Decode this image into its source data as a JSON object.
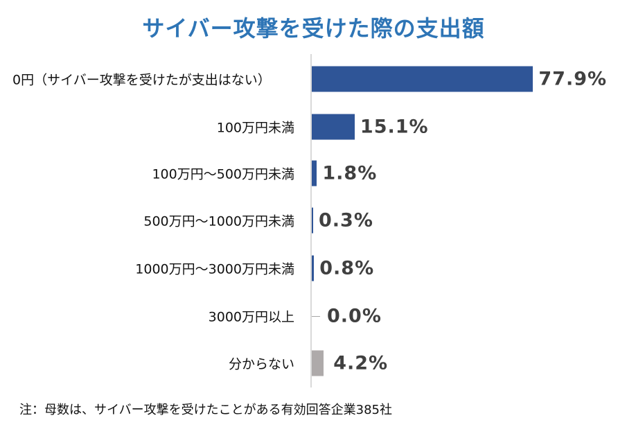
{
  "header": {
    "title": "サイバー攻撃を受けた際の支出額"
  },
  "footer": {
    "note": "注：母数は、サイバー攻撃を受けたことがある有効回答企業385社"
  },
  "colors": {
    "primary_bar": "#2f5597",
    "unknown_bar": "#aeaaaa",
    "title": "#2e75b6",
    "value_text": "#404040",
    "axis": "#d9d9d9"
  },
  "rows": [
    {
      "label": "0円（サイバー攻撃を受けたが支出はない）",
      "value": 77.9,
      "display": "77.9%",
      "color": "#2f5597"
    },
    {
      "label": "100万円未満",
      "value": 15.1,
      "display": "15.1%",
      "color": "#2f5597"
    },
    {
      "label": "100万円～500万円未満",
      "value": 1.8,
      "display": "1.8%",
      "color": "#2f5597"
    },
    {
      "label": "500万円～1000万円未満",
      "value": 0.3,
      "display": "0.3%",
      "color": "#2f5597"
    },
    {
      "label": "1000万円～3000万円未満",
      "value": 0.8,
      "display": "0.8%",
      "color": "#2f5597"
    },
    {
      "label": "3000万円以上",
      "value": 0.0,
      "display": "0.0%",
      "color": "#2f5597"
    },
    {
      "label": "分からない",
      "value": 4.2,
      "display": "4.2%",
      "color": "#aeaaaa"
    }
  ],
  "chart_data": {
    "type": "bar",
    "orientation": "horizontal",
    "title": "サイバー攻撃を受けた際の支出額",
    "categories": [
      "0円（サイバー攻撃を受けたが支出はない）",
      "100万円未満",
      "100万円～500万円未満",
      "500万円～1000万円未満",
      "1000万円～3000万円未満",
      "3000万円以上",
      "分からない"
    ],
    "values": [
      77.9,
      15.1,
      1.8,
      0.3,
      0.8,
      0.0,
      4.2
    ],
    "unit": "%",
    "xlabel": "",
    "ylabel": "",
    "grid": false,
    "legend": null,
    "annotations": [
      "注：母数は、サイバー攻撃を受けたことがある有効回答企業385社"
    ]
  }
}
